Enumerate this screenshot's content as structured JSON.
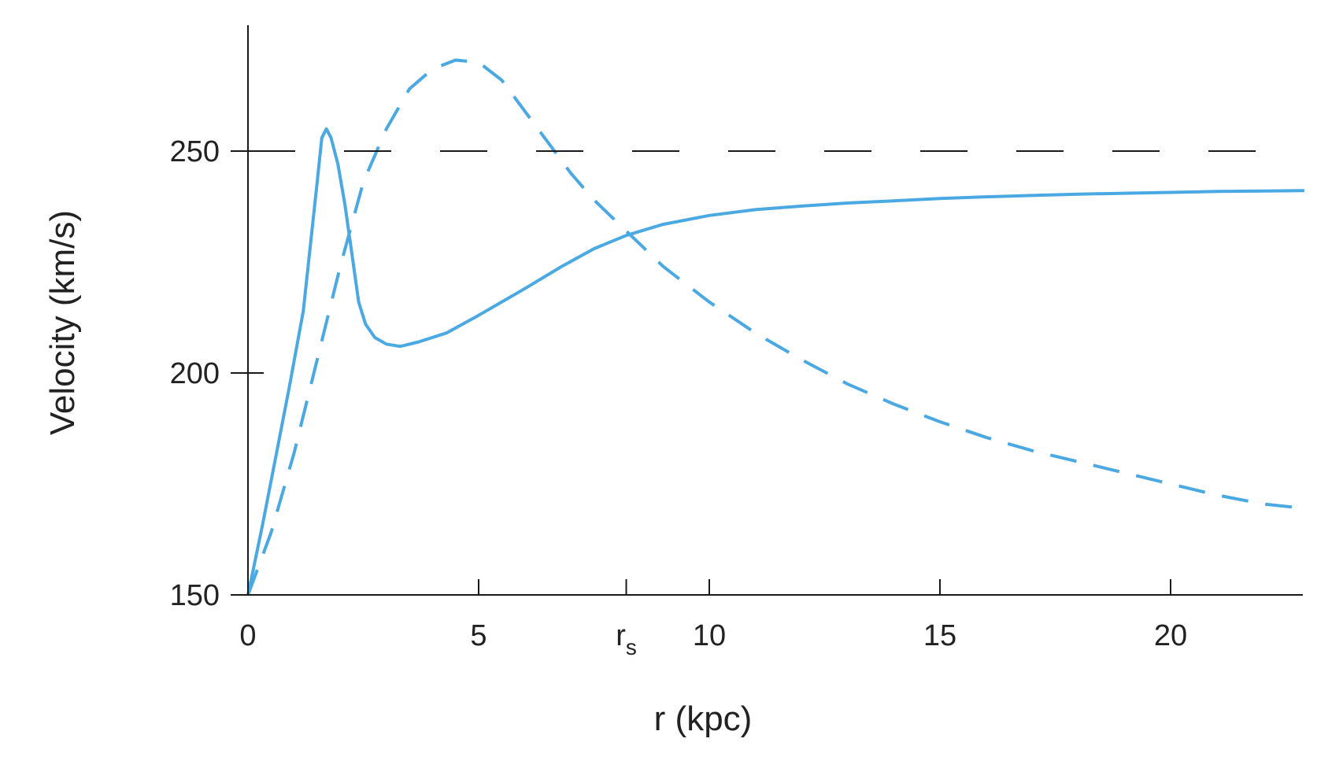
{
  "chart_data": {
    "type": "line",
    "title": "",
    "xlabel": "r (kpc)",
    "ylabel": "Velocity (km/s)",
    "xlim": [
      0,
      22.9
    ],
    "ylim": [
      150,
      278
    ],
    "grid": false,
    "x_ticks": [
      {
        "value": 0,
        "label": "0"
      },
      {
        "value": 5,
        "label": "5"
      },
      {
        "value": 8.2,
        "label": "r",
        "subscript": "s"
      },
      {
        "value": 10,
        "label": "10"
      },
      {
        "value": 15,
        "label": "15"
      },
      {
        "value": 20,
        "label": "20"
      }
    ],
    "y_ticks": [
      {
        "value": 150,
        "label": "150"
      },
      {
        "value": 200,
        "label": "200"
      },
      {
        "value": 250,
        "label": "250"
      }
    ],
    "series": [
      {
        "style": "solid",
        "color": "#4aa8e2",
        "points": [
          [
            0,
            150
          ],
          [
            0.3,
            165
          ],
          [
            0.6,
            181
          ],
          [
            0.9,
            197
          ],
          [
            1.2,
            214
          ],
          [
            1.5,
            243
          ],
          [
            1.6,
            253
          ],
          [
            1.7,
            255
          ],
          [
            1.8,
            253
          ],
          [
            1.95,
            247
          ],
          [
            2.1,
            238
          ],
          [
            2.25,
            227
          ],
          [
            2.4,
            216
          ],
          [
            2.55,
            211
          ],
          [
            2.75,
            208
          ],
          [
            3.0,
            206.5
          ],
          [
            3.3,
            206
          ],
          [
            3.7,
            207
          ],
          [
            4.3,
            209
          ],
          [
            5.0,
            213
          ],
          [
            6.0,
            219
          ],
          [
            6.8,
            224
          ],
          [
            7.5,
            228
          ],
          [
            8.2,
            231
          ],
          [
            9.0,
            233.5
          ],
          [
            10.0,
            235.5
          ],
          [
            11.0,
            236.8
          ],
          [
            12.0,
            237.6
          ],
          [
            13.0,
            238.3
          ],
          [
            14.0,
            238.8
          ],
          [
            15.0,
            239.3
          ],
          [
            16.0,
            239.7
          ],
          [
            17.0,
            240.0
          ],
          [
            18.0,
            240.3
          ],
          [
            19.0,
            240.5
          ],
          [
            20.0,
            240.7
          ],
          [
            21.0,
            240.9
          ],
          [
            22.0,
            241.0
          ],
          [
            22.9,
            241.1
          ]
        ]
      },
      {
        "style": "dashed",
        "color": "#4aa8e2",
        "points": [
          [
            0,
            150
          ],
          [
            0.5,
            164
          ],
          [
            1.0,
            182
          ],
          [
            1.5,
            203
          ],
          [
            2.0,
            224
          ],
          [
            2.5,
            243
          ],
          [
            3.0,
            255
          ],
          [
            3.5,
            264
          ],
          [
            4.0,
            268.5
          ],
          [
            4.5,
            270.5
          ],
          [
            5.0,
            270
          ],
          [
            5.5,
            266
          ],
          [
            6.0,
            259
          ],
          [
            6.5,
            252
          ],
          [
            7.0,
            245
          ],
          [
            7.5,
            239
          ],
          [
            8.2,
            232
          ],
          [
            9.0,
            224
          ],
          [
            10.0,
            216
          ],
          [
            11.0,
            209
          ],
          [
            12.0,
            203
          ],
          [
            13.0,
            197.5
          ],
          [
            14.0,
            193
          ],
          [
            15.0,
            189
          ],
          [
            16.0,
            185.5
          ],
          [
            17.0,
            182.5
          ],
          [
            18.0,
            180
          ],
          [
            19.0,
            177.5
          ],
          [
            20.0,
            175
          ],
          [
            21.0,
            172.5
          ],
          [
            22.0,
            170.5
          ],
          [
            22.9,
            169.5
          ]
        ]
      },
      {
        "style": "long-dashed",
        "color": "#1a1a1a",
        "points": [
          [
            0,
            250
          ],
          [
            22.9,
            250
          ]
        ]
      }
    ]
  }
}
